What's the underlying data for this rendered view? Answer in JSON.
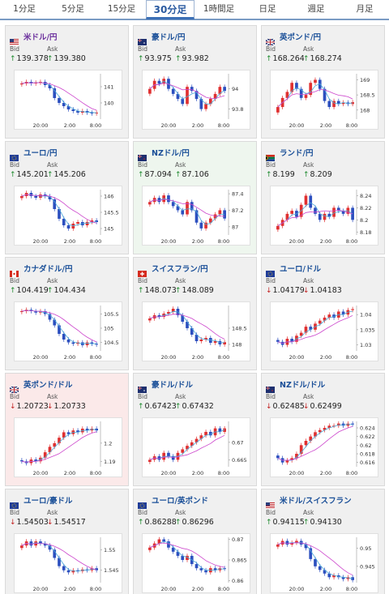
{
  "tabs": [
    {
      "label": "1分足",
      "active": false
    },
    {
      "label": "5分足",
      "active": false
    },
    {
      "label": "15分足",
      "active": false
    },
    {
      "label": "30分足",
      "active": true
    },
    {
      "label": "1時間足",
      "active": false
    },
    {
      "label": "日足",
      "active": false
    },
    {
      "label": "週足",
      "active": false
    },
    {
      "label": "月足",
      "active": false
    }
  ],
  "labels": {
    "bid": "Bid",
    "ask": "Ask"
  },
  "colors": {
    "up": "#1e8a2e",
    "down": "#c21f1f",
    "candle_up": "#e03030",
    "candle_down": "#2c4fbf",
    "ma_short": "#4aa8d8",
    "ma_long": "#cc44cc"
  },
  "cards": [
    {
      "name": "米ドル/円",
      "name_color": "purple",
      "flag": "us-flag-icon",
      "direction": "up",
      "bid": "139.378",
      "ask": "139.380",
      "bg": "gray",
      "chart_data": {
        "type": "candlestick",
        "x_ticks": [
          "20:00",
          "2:00",
          "8:00"
        ],
        "y_ticks": [
          "141",
          "140"
        ],
        "ylim": [
          139.0,
          141.8
        ],
        "closes": [
          141.2,
          141.3,
          141.2,
          141.25,
          141.3,
          141.1,
          140.9,
          140.3,
          140.0,
          139.8,
          139.6,
          139.5,
          139.4,
          139.5,
          139.4,
          139.35,
          139.4
        ]
      }
    },
    {
      "name": "豪ドル/円",
      "flag": "au-flag-icon",
      "direction": "up",
      "bid": "93.975",
      "ask": "93.982",
      "bg": "gray",
      "chart_data": {
        "type": "candlestick",
        "x_ticks": [
          "20:00",
          "2:00",
          "8:00"
        ],
        "y_ticks": [
          "94",
          "93.8"
        ],
        "ylim": [
          93.7,
          94.15
        ],
        "closes": [
          94.0,
          94.08,
          94.05,
          94.1,
          94.0,
          93.95,
          93.9,
          93.85,
          94.02,
          93.98,
          93.9,
          93.8,
          93.85,
          93.9,
          93.95,
          94.02,
          93.98
        ]
      }
    },
    {
      "name": "英ポンド/円",
      "flag": "uk-flag-icon",
      "direction": "up",
      "bid": "168.264",
      "ask": "168.274",
      "bg": "gray",
      "chart_data": {
        "type": "candlestick",
        "x_ticks": [
          "20:00",
          "2:00",
          "8:00"
        ],
        "y_ticks": [
          "169",
          "168.5",
          "168"
        ],
        "ylim": [
          167.7,
          169.2
        ],
        "closes": [
          168.1,
          168.4,
          168.6,
          168.9,
          168.7,
          168.4,
          168.5,
          168.9,
          169.0,
          168.7,
          168.3,
          168.1,
          168.3,
          168.2,
          168.25,
          168.2,
          168.26
        ]
      }
    },
    {
      "name": "ユーロ/円",
      "flag": "eu-flag-icon",
      "direction": "up",
      "bid": "145.201",
      "ask": "145.206",
      "bg": "gray",
      "chart_data": {
        "type": "candlestick",
        "x_ticks": [
          "20:00",
          "2:00",
          "8:00"
        ],
        "y_ticks": [
          "146",
          "145.5",
          "145"
        ],
        "ylim": [
          144.8,
          146.2
        ],
        "closes": [
          146.0,
          146.1,
          146.0,
          145.95,
          146.05,
          146.0,
          145.9,
          145.6,
          145.3,
          145.1,
          145.0,
          145.15,
          145.2,
          145.1,
          145.2,
          145.25,
          145.2
        ]
      }
    },
    {
      "name": "NZドル/円",
      "flag": "nz-flag-icon",
      "direction": "up",
      "bid": "87.094",
      "ask": "87.106",
      "bg": "green",
      "chart_data": {
        "type": "candlestick",
        "x_ticks": [
          "20:00",
          "2:00",
          "8:00"
        ],
        "y_ticks": [
          "87.4",
          "87.2",
          "87"
        ],
        "ylim": [
          86.9,
          87.45
        ],
        "closes": [
          87.3,
          87.35,
          87.3,
          87.38,
          87.3,
          87.25,
          87.2,
          87.15,
          87.3,
          87.2,
          87.05,
          86.98,
          87.05,
          87.1,
          87.15,
          87.2,
          87.1
        ]
      }
    },
    {
      "name": "ランド/円",
      "flag": "za-flag-icon",
      "direction": "up",
      "bid": "8.199",
      "ask": "8.209",
      "bg": "gray",
      "chart_data": {
        "type": "candlestick",
        "x_ticks": [
          "20:00",
          "2:00",
          "8:00"
        ],
        "y_ticks": [
          "8.24",
          "8.22",
          "8.2",
          "8.18"
        ],
        "ylim": [
          8.175,
          8.25
        ],
        "closes": [
          8.19,
          8.2,
          8.21,
          8.215,
          8.205,
          8.225,
          8.24,
          8.22,
          8.21,
          8.2,
          8.21,
          8.205,
          8.22,
          8.215,
          8.21,
          8.22,
          8.2
        ]
      }
    },
    {
      "name": "カナダドル/円",
      "flag": "ca-flag-icon",
      "direction": "up",
      "bid": "104.419",
      "ask": "104.434",
      "bg": "gray",
      "chart_data": {
        "type": "candlestick",
        "x_ticks": [
          "20:00",
          "2:00",
          "8:00"
        ],
        "y_ticks": [
          "105.5",
          "105",
          "104.5"
        ],
        "ylim": [
          104.2,
          105.8
        ],
        "closes": [
          105.6,
          105.65,
          105.6,
          105.55,
          105.6,
          105.5,
          105.3,
          105.1,
          104.8,
          104.6,
          104.5,
          104.45,
          104.5,
          104.4,
          104.5,
          104.45,
          104.42
        ]
      }
    },
    {
      "name": "スイスフラン/円",
      "flag": "ch-flag-icon",
      "direction": "up",
      "bid": "148.073",
      "ask": "148.089",
      "bg": "gray",
      "chart_data": {
        "type": "candlestick",
        "x_ticks": [
          "20:00",
          "2:00",
          "8:00"
        ],
        "y_ticks": [
          "148.5",
          "148"
        ],
        "ylim": [
          147.8,
          149.2
        ],
        "closes": [
          148.8,
          148.9,
          148.85,
          148.95,
          149.0,
          149.1,
          148.9,
          148.7,
          148.5,
          148.3,
          148.1,
          148.15,
          148.2,
          148.05,
          148.1,
          148.0,
          148.07
        ]
      }
    },
    {
      "name": "ユーロ/ドル",
      "flag": "eu-flag-icon",
      "direction": "down",
      "bid": "1.04179",
      "ask": "1.04183",
      "bg": "gray",
      "chart_data": {
        "type": "candlestick",
        "x_ticks": [
          "20:00",
          "2:00",
          "8:00"
        ],
        "y_ticks": [
          "1.04",
          "1.035",
          "1.03"
        ],
        "ylim": [
          1.028,
          1.043
        ],
        "closes": [
          1.031,
          1.03,
          1.032,
          1.031,
          1.033,
          1.034,
          1.036,
          1.035,
          1.037,
          1.038,
          1.039,
          1.04,
          1.039,
          1.041,
          1.04,
          1.0415,
          1.0418
        ]
      }
    },
    {
      "name": "英ポンド/ドル",
      "flag": "uk-flag-icon",
      "direction": "down",
      "bid": "1.20723",
      "ask": "1.20733",
      "bg": "pink",
      "chart_data": {
        "type": "candlestick",
        "x_ticks": [
          "20:00",
          "2:00",
          "8:00"
        ],
        "y_ticks": [
          "1.2",
          "1.19"
        ],
        "ylim": [
          1.187,
          1.212
        ],
        "closes": [
          1.19,
          1.189,
          1.191,
          1.19,
          1.192,
          1.195,
          1.198,
          1.2,
          1.203,
          1.206,
          1.205,
          1.207,
          1.206,
          1.208,
          1.207,
          1.208,
          1.207
        ]
      }
    },
    {
      "name": "豪ドル/ドル",
      "flag": "au-flag-icon",
      "direction": "up",
      "bid": "0.67423",
      "ask": "0.67432",
      "bg": "gray",
      "chart_data": {
        "type": "candlestick",
        "x_ticks": [
          "20:00",
          "2:00",
          "8:00"
        ],
        "y_ticks": [
          "0.67",
          "0.665"
        ],
        "ylim": [
          0.663,
          0.676
        ],
        "closes": [
          0.665,
          0.666,
          0.665,
          0.667,
          0.666,
          0.665,
          0.667,
          0.668,
          0.669,
          0.67,
          0.671,
          0.672,
          0.673,
          0.672,
          0.674,
          0.673,
          0.674
        ]
      }
    },
    {
      "name": "NZドル/ドル",
      "flag": "nz-flag-icon",
      "direction": "down",
      "bid": "0.62485",
      "ask": "0.62499",
      "bg": "gray",
      "chart_data": {
        "type": "candlestick",
        "x_ticks": [
          "20:00",
          "2:00",
          "8:00"
        ],
        "y_ticks": [
          "0.624",
          "0.622",
          "0.62",
          "0.618",
          "0.616"
        ],
        "ylim": [
          0.615,
          0.6255
        ],
        "closes": [
          0.617,
          0.616,
          0.6165,
          0.617,
          0.618,
          0.62,
          0.621,
          0.622,
          0.623,
          0.6235,
          0.624,
          0.6245,
          0.6245,
          0.625,
          0.6245,
          0.625,
          0.6248
        ]
      }
    },
    {
      "name": "ユーロ/豪ドル",
      "flag": "eu-flag-icon",
      "direction": "down",
      "bid": "1.54503",
      "ask": "1.54517",
      "bg": "gray",
      "chart_data": {
        "type": "candlestick",
        "x_ticks": [
          "20:00",
          "2:00",
          "8:00"
        ],
        "y_ticks": [
          "1.55",
          "1.545"
        ],
        "ylim": [
          1.542,
          1.553
        ],
        "closes": [
          1.551,
          1.552,
          1.551,
          1.552,
          1.5515,
          1.551,
          1.55,
          1.548,
          1.546,
          1.545,
          1.5445,
          1.545,
          1.5448,
          1.5452,
          1.545,
          1.5455,
          1.545
        ]
      }
    },
    {
      "name": "ユーロ/英ポンド",
      "flag": "eu-flag-icon",
      "direction": "up",
      "bid": "0.86288",
      "ask": "0.86296",
      "bg": "gray",
      "chart_data": {
        "type": "candlestick",
        "x_ticks": [
          "20:00",
          "2:00",
          "8:00"
        ],
        "y_ticks": [
          "0.87",
          "0.865",
          "0.86"
        ],
        "ylim": [
          0.8595,
          0.8705
        ],
        "closes": [
          0.868,
          0.869,
          0.87,
          0.8695,
          0.868,
          0.867,
          0.866,
          0.865,
          0.866,
          0.864,
          0.863,
          0.8625,
          0.862,
          0.863,
          0.8625,
          0.863,
          0.8629
        ]
      }
    },
    {
      "name": "米ドル/スイスフラン",
      "flag": "us-flag-icon",
      "direction": "up",
      "bid": "0.94115",
      "ask": "0.94130",
      "bg": "gray",
      "chart_data": {
        "type": "candlestick",
        "x_ticks": [
          "20:00",
          "2:00",
          "8:00"
        ],
        "y_ticks": [
          "0.95",
          "0.945"
        ],
        "ylim": [
          0.9405,
          0.953
        ],
        "closes": [
          0.951,
          0.952,
          0.951,
          0.9515,
          0.952,
          0.951,
          0.95,
          0.947,
          0.945,
          0.944,
          0.943,
          0.942,
          0.9425,
          0.942,
          0.9415,
          0.942,
          0.9412
        ]
      }
    }
  ]
}
